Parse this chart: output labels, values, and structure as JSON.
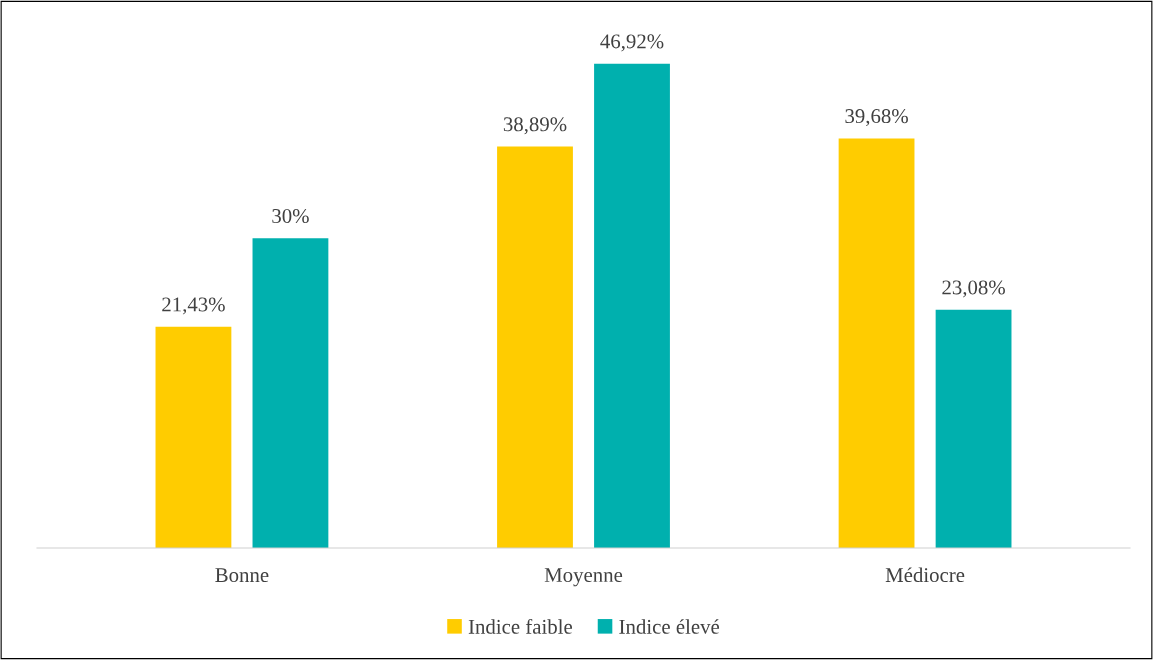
{
  "chart_data": {
    "type": "bar",
    "categories": [
      "Bonne",
      "Moyenne",
      "Médiocre"
    ],
    "series": [
      {
        "name": "Indice faible",
        "color": "#ffcc00",
        "values": [
          21.43,
          38.89,
          39.68
        ],
        "value_labels": [
          "21,43%",
          "38,89%",
          "39,68%"
        ]
      },
      {
        "name": "Indice élevé",
        "color": "#00b0ae",
        "values": [
          30,
          46.92,
          23.08
        ],
        "value_labels": [
          "30%",
          "46,92%",
          "23,08%"
        ]
      }
    ],
    "legend": "bottom",
    "grid": false,
    "tick_labels": "x"
  }
}
